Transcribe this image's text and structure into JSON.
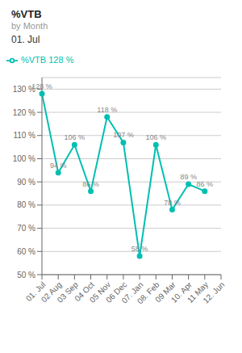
{
  "chart_data": {
    "type": "line",
    "title": "%VTB",
    "subtitle": "by Month",
    "annotations": [
      "01. Jul"
    ],
    "categories": [
      "01. Jul",
      "02 Aug",
      "03 Sep",
      "04 Oct",
      "05 Nov",
      "06 Dec",
      "07. Jan",
      "08. Feb",
      "09 Mar",
      "10. Apr",
      "11 May",
      "12. Jun"
    ],
    "series": [
      {
        "name": "%VTB 128 %",
        "color": "#00BFB2",
        "values": [
          128,
          94,
          106,
          86,
          118,
          107,
          58,
          106,
          78,
          89,
          86,
          null
        ],
        "value_labels": [
          "128 %",
          "94 %",
          "106 %",
          "86 %",
          "118 %",
          "107 %",
          "58 %",
          "106 %",
          "78 %",
          "89 %",
          "86 %",
          null
        ]
      }
    ],
    "ylim": [
      50,
      135
    ],
    "yticks": [
      {
        "value": 50,
        "label": "50 %"
      },
      {
        "value": 60,
        "label": "60 %"
      },
      {
        "value": 70,
        "label": "70 %"
      },
      {
        "value": 80,
        "label": "80 %"
      },
      {
        "value": 90,
        "label": "90 %"
      },
      {
        "value": 100,
        "label": "100 %"
      },
      {
        "value": 110,
        "label": "110 %"
      },
      {
        "value": 120,
        "label": "120 %"
      },
      {
        "value": 130,
        "label": "130 %"
      }
    ],
    "grid": true,
    "data_labels": true
  }
}
